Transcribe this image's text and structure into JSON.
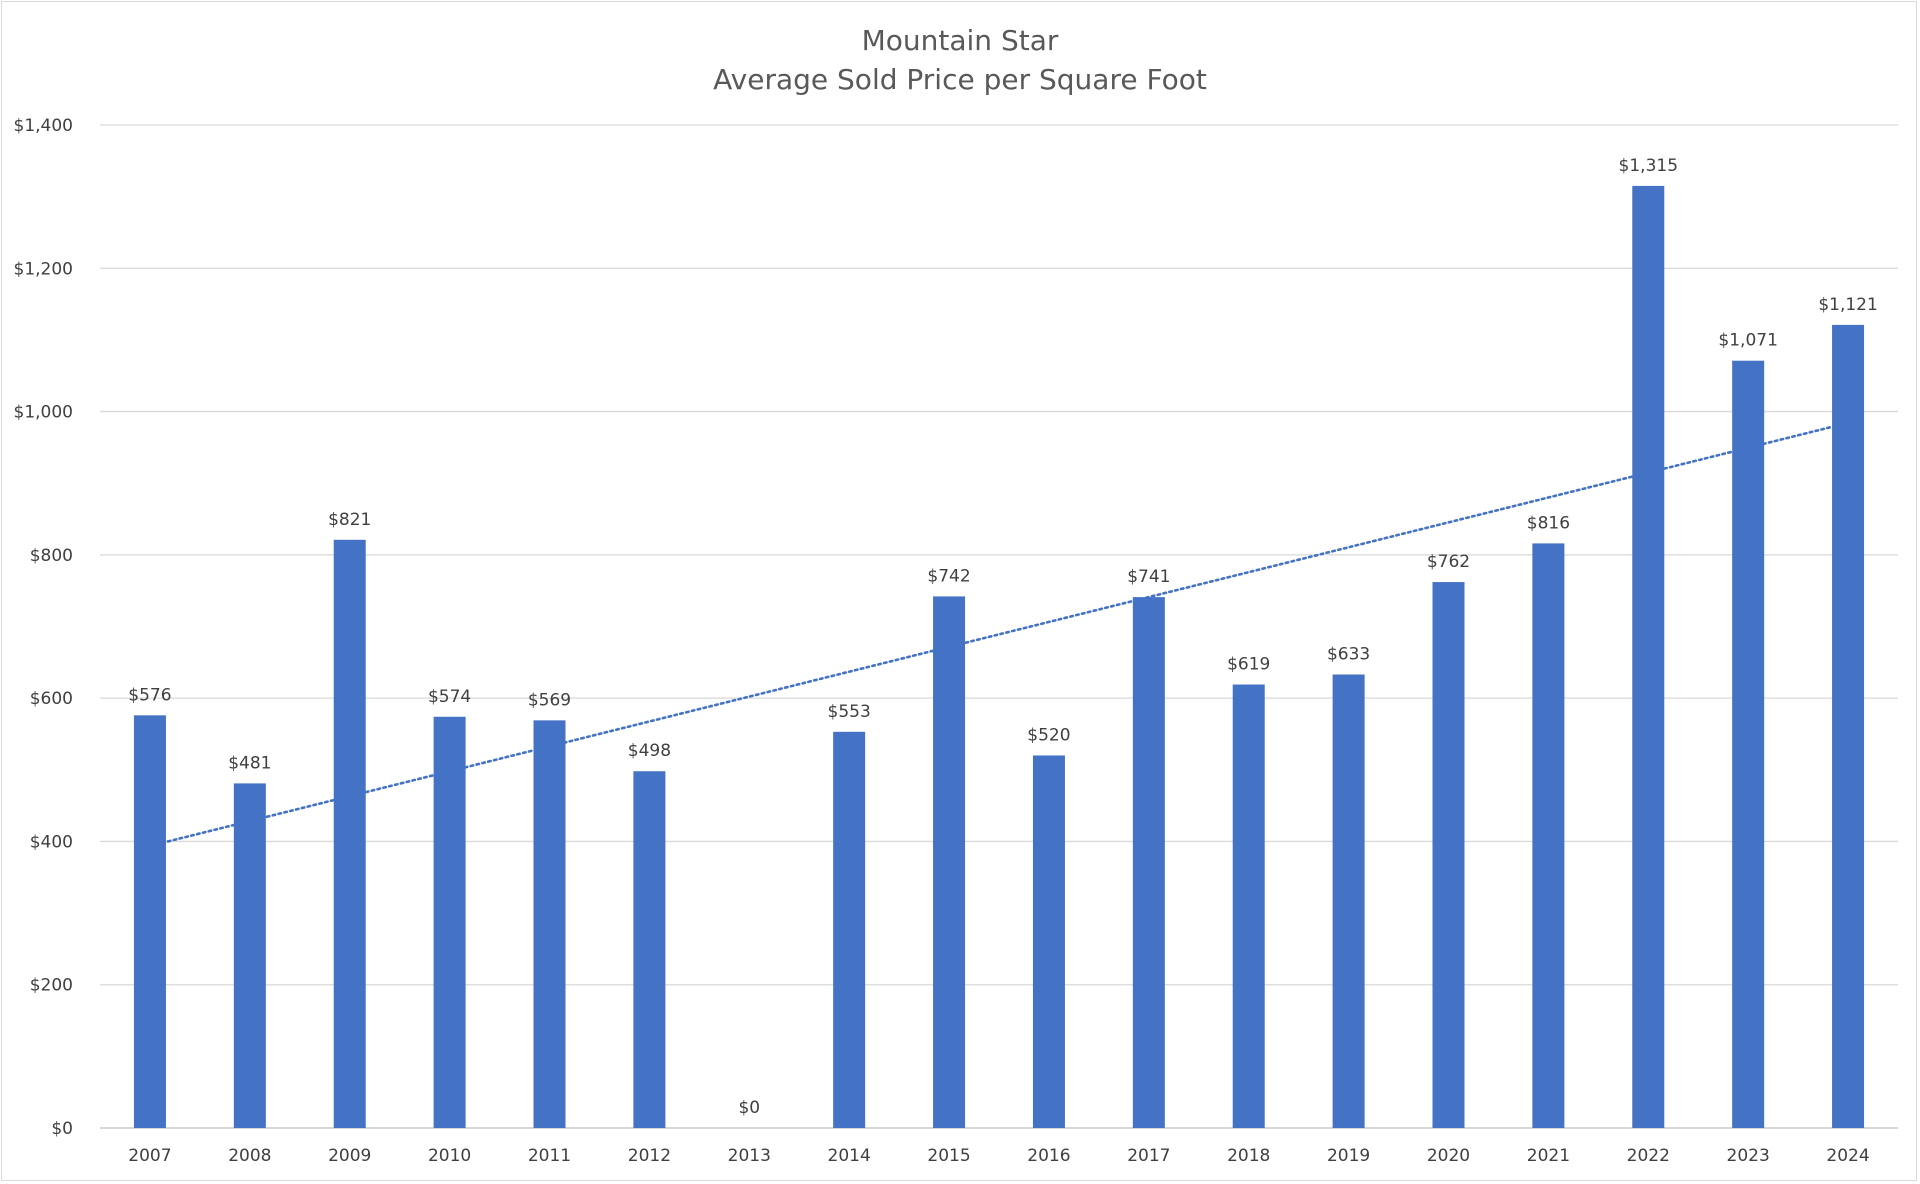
{
  "chart_data": {
    "type": "bar",
    "title": "Mountain Star",
    "subtitle": "Average Sold Price per Square Foot",
    "categories": [
      "2007",
      "2008",
      "2009",
      "2010",
      "2011",
      "2012",
      "2013",
      "2014",
      "2015",
      "2016",
      "2017",
      "2018",
      "2019",
      "2020",
      "2021",
      "2022",
      "2023",
      "2024"
    ],
    "values": [
      576,
      481,
      821,
      574,
      569,
      498,
      0,
      553,
      742,
      520,
      741,
      619,
      633,
      762,
      816,
      1315,
      1071,
      1121
    ],
    "data_labels": [
      "$576",
      "$481",
      "$821",
      "$574",
      "$569",
      "$498",
      "$0",
      "$553",
      "$742",
      "$520",
      "$741",
      "$619",
      "$633",
      "$762",
      "$816",
      "$1,315",
      "$1,071",
      "$1,121"
    ],
    "y_ticks": [
      0,
      200,
      400,
      600,
      800,
      1000,
      1200,
      1400
    ],
    "y_tick_labels": [
      "$0",
      "$200",
      "$400",
      "$600",
      "$800",
      "$1,000",
      "$1,200",
      "$1,400"
    ],
    "ylim": [
      0,
      1400
    ],
    "xlabel": "",
    "ylabel": "",
    "grid": true,
    "legend": "none",
    "bar_color": "#4472c4",
    "trendline": {
      "type": "linear",
      "style": "dotted",
      "color": "#4472c4",
      "start_value": 400,
      "end_value": 978
    }
  }
}
